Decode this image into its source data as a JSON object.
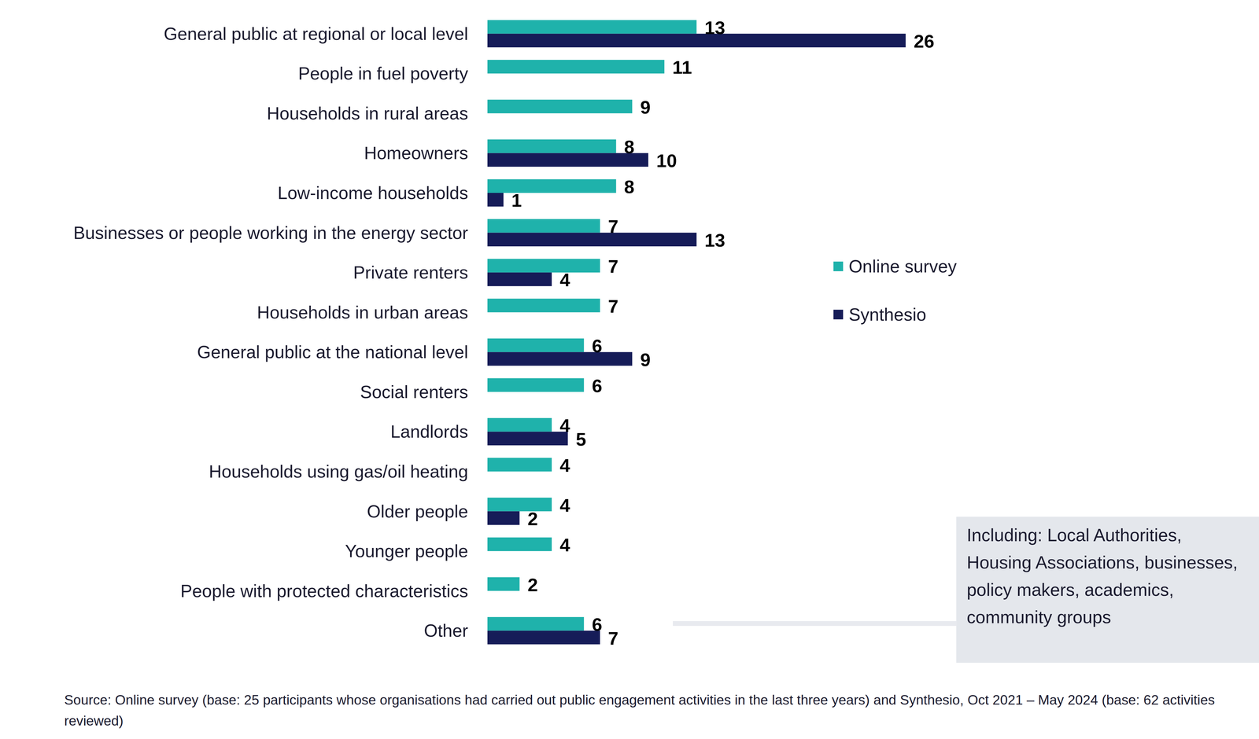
{
  "chart_data": {
    "type": "bar",
    "orientation": "horizontal",
    "categories": [
      "General public at regional or local level",
      "People in fuel poverty",
      "Households in rural areas",
      "Homeowners",
      "Low-income households",
      "Businesses or people working in the energy sector",
      "Private renters",
      "Households in urban areas",
      "General public at the national level",
      "Social renters",
      "Landlords",
      "Households using gas/oil heating",
      "Older people",
      "Younger people",
      "People with protected characteristics",
      "Other"
    ],
    "series": [
      {
        "name": "Online survey",
        "color": "#1fb2ab",
        "values": [
          13,
          11,
          9,
          8,
          8,
          7,
          7,
          7,
          6,
          6,
          4,
          4,
          4,
          4,
          2,
          6
        ]
      },
      {
        "name": "Synthesio",
        "color": "#161c58",
        "values": [
          26,
          null,
          null,
          10,
          1,
          13,
          4,
          null,
          9,
          null,
          5,
          null,
          2,
          null,
          null,
          7
        ]
      }
    ],
    "xlim": [
      0,
      26
    ],
    "data_labels": true,
    "tick_labels": "y",
    "grid": false,
    "legend": "right",
    "annotation": "Including: Local Authorities, Housing Associations, businesses, policy makers, academics, community groups",
    "source": "Source: Online survey (base: 25 participants whose organisations had carried out public engagement activities in the last three years)  and Synthesio, Oct 2021 – May 2024 (base: 62 activities reviewed)"
  }
}
